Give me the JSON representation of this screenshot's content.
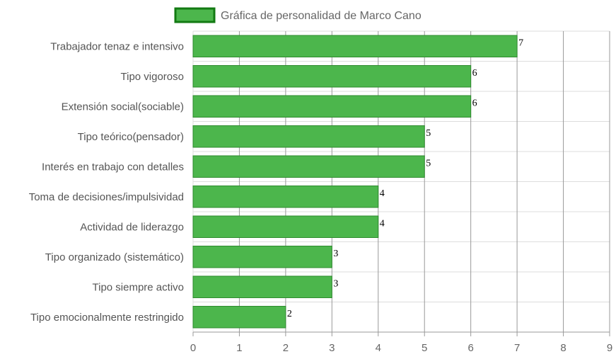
{
  "chart_data": {
    "type": "bar",
    "orientation": "horizontal",
    "categories": [
      "Trabajador tenaz e intensivo",
      "Tipo vigoroso",
      "Extensión social(sociable)",
      "Tipo teórico(pensador)",
      "Interés en trabajo con detalles",
      "Toma de decisiones/impulsividad",
      "Actividad de liderazgo",
      "Tipo organizado (sistemático)",
      "Tipo siempre activo",
      "Tipo emocionalmente restringido"
    ],
    "series": [
      {
        "name": "Gráfica de personalidad de Marco Cano",
        "values": [
          7,
          6,
          6,
          5,
          5,
          4,
          4,
          3,
          3,
          2
        ],
        "color": "#4cb64c",
        "border_color": "#2e8b2e"
      }
    ],
    "data_labels": [
      "7",
      "6",
      "6",
      "5",
      "5",
      "4",
      "4",
      "3",
      "3",
      "2"
    ],
    "xlim": [
      0,
      9
    ],
    "x_ticks": [
      "0",
      "1",
      "2",
      "3",
      "4",
      "5",
      "6",
      "7",
      "8",
      "9"
    ],
    "grid": true,
    "legend_position": "top-center",
    "legend_swatch_color": "#4cb64c",
    "legend_swatch_border": "#127a12",
    "grid_color": "#dddddd",
    "grid_major_color": "#999999"
  }
}
